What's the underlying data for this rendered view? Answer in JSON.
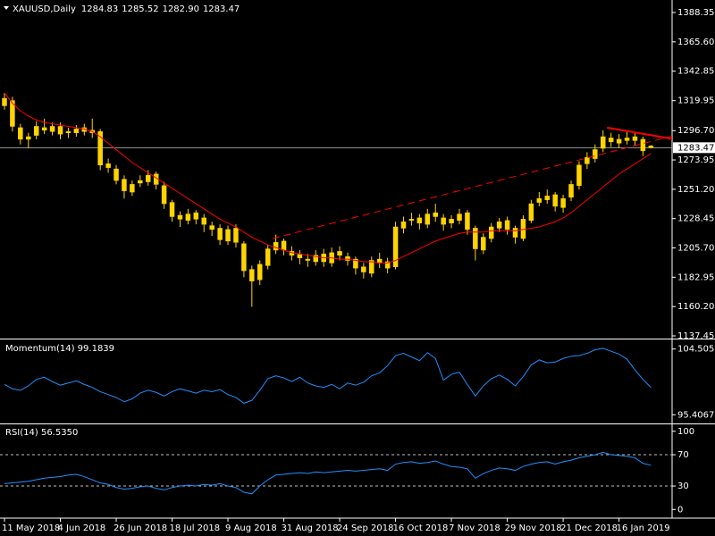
{
  "chart_data": [
    {
      "type": "candlestick",
      "title": "XAUUSD,Daily",
      "header_ohlc": [
        "1284.83",
        "1285.52",
        "1282.90",
        "1283.47"
      ],
      "categories": [
        "11 May 2018",
        null,
        null,
        null,
        null,
        null,
        null,
        "4 Jun 2018",
        null,
        null,
        null,
        null,
        null,
        null,
        "26 Jun 2018",
        null,
        null,
        null,
        null,
        null,
        null,
        "18 Jul 2018",
        null,
        null,
        null,
        null,
        null,
        null,
        "9 Aug 2018",
        null,
        null,
        null,
        null,
        null,
        null,
        "31 Aug 2018",
        null,
        null,
        null,
        null,
        null,
        null,
        "24 Sep 2018",
        null,
        null,
        null,
        null,
        null,
        null,
        "16 Oct 2018",
        null,
        null,
        null,
        null,
        null,
        null,
        "7 Nov 2018",
        null,
        null,
        null,
        null,
        null,
        null,
        "29 Nov 2018",
        null,
        null,
        null,
        null,
        null,
        null,
        "21 Dec 2018",
        null,
        null,
        null,
        null,
        null,
        null,
        "16 Jan 2019",
        null,
        null,
        null,
        null
      ],
      "open": [
        1316,
        1320,
        1299,
        1290,
        1293,
        1299,
        1296,
        1300,
        1295,
        1295,
        1299,
        1295,
        1296,
        1271,
        1267,
        1259,
        1249,
        1256,
        1257,
        1263,
        1254,
        1241,
        1231,
        1227,
        1233,
        1229,
        1223,
        1221,
        1211,
        1221,
        1209,
        1189,
        1181,
        1192,
        1204,
        1211,
        1203,
        1201,
        1197,
        1195,
        1201,
        1194,
        1203,
        1199,
        1197,
        1191,
        1186,
        1197,
        1195,
        1191,
        1221,
        1227,
        1229,
        1224,
        1233,
        1229,
        1225,
        1227,
        1233,
        1221,
        1204,
        1213,
        1221,
        1227,
        1221,
        1213,
        1227,
        1241,
        1243,
        1247,
        1237,
        1245,
        1254,
        1271,
        1275,
        1283,
        1291,
        1287,
        1289,
        1292,
        1290,
        1284.83
      ],
      "high": [
        1326,
        1323,
        1302,
        1295,
        1304,
        1306,
        1303,
        1303,
        1299,
        1301,
        1302,
        1306,
        1298,
        1275,
        1270,
        1262,
        1258,
        1262,
        1266,
        1265,
        1257,
        1243,
        1234,
        1236,
        1235,
        1232,
        1226,
        1224,
        1223,
        1224,
        1211,
        1192,
        1196,
        1208,
        1216,
        1213,
        1207,
        1204,
        1201,
        1204,
        1205,
        1206,
        1207,
        1202,
        1199,
        1194,
        1199,
        1202,
        1198,
        1226,
        1230,
        1233,
        1232,
        1236,
        1240,
        1232,
        1231,
        1236,
        1235,
        1223,
        1217,
        1225,
        1229,
        1230,
        1223,
        1231,
        1243,
        1249,
        1251,
        1249,
        1247,
        1258,
        1273,
        1280,
        1286,
        1297,
        1295,
        1294,
        1296,
        1295,
        1292,
        1285.52
      ],
      "low": [
        1313,
        1296,
        1286,
        1283,
        1290,
        1294,
        1293,
        1290,
        1291,
        1292,
        1293,
        1291,
        1266,
        1264,
        1255,
        1244,
        1246,
        1253,
        1254,
        1251,
        1236,
        1226,
        1222,
        1224,
        1224,
        1218,
        1215,
        1208,
        1208,
        1206,
        1183,
        1160,
        1177,
        1189,
        1201,
        1200,
        1196,
        1193,
        1191,
        1192,
        1191,
        1191,
        1196,
        1192,
        1185,
        1182,
        1183,
        1190,
        1186,
        1189,
        1217,
        1223,
        1220,
        1221,
        1226,
        1219,
        1221,
        1224,
        1216,
        1196,
        1201,
        1210,
        1218,
        1216,
        1209,
        1211,
        1225,
        1238,
        1240,
        1234,
        1233,
        1242,
        1251,
        1267,
        1272,
        1280,
        1284,
        1283,
        1286,
        1285,
        1277,
        1282.9
      ],
      "close": [
        1321.8,
        1300,
        1290,
        1292,
        1300,
        1297,
        1300,
        1294,
        1296,
        1298,
        1296,
        1297,
        1270,
        1268,
        1258,
        1250,
        1255,
        1258,
        1262,
        1255,
        1240,
        1230,
        1228,
        1232,
        1228,
        1224,
        1220,
        1212,
        1220,
        1210,
        1188,
        1180,
        1193,
        1205,
        1210,
        1204,
        1200,
        1198,
        1196,
        1200,
        1195,
        1202,
        1200,
        1196,
        1190,
        1187,
        1196,
        1194,
        1190,
        1222,
        1226,
        1228,
        1225,
        1232,
        1230,
        1224,
        1228,
        1232,
        1220,
        1205,
        1214,
        1222,
        1226,
        1220,
        1214,
        1228,
        1240,
        1244,
        1246,
        1238,
        1244,
        1255,
        1270,
        1276,
        1282,
        1292,
        1288,
        1290,
        1291,
        1289,
        1281,
        1283.47
      ],
      "color": "#ffd400",
      "series": [
        {
          "color": "#ff0000",
          "values": [
            1326,
            1318,
            1312,
            1308,
            1305,
            1303,
            1302,
            1301,
            1300,
            1299,
            1298,
            1296,
            1292,
            1287,
            1282,
            1277,
            1272,
            1268,
            1264,
            1260,
            1256,
            1252,
            1248,
            1244,
            1240,
            1236,
            1232,
            1228,
            1225,
            1222,
            1218,
            1214,
            1211,
            1208,
            1206,
            1204,
            1202,
            1201,
            1200,
            1199,
            1198,
            1198,
            1197,
            1197,
            1196,
            1195,
            1195,
            1194,
            1194,
            1196,
            1199,
            1202,
            1205,
            1208,
            1211,
            1213,
            1215,
            1217,
            1218,
            1218,
            1218,
            1219,
            1219,
            1219,
            1219,
            1220,
            1221,
            1222,
            1224,
            1226,
            1229,
            1233,
            1238,
            1243,
            1248,
            1253,
            1258,
            1263,
            1267,
            1271,
            1275,
            1279
          ]
        }
      ],
      "trendlines": [
        {
          "x": [
            33.6,
            84
          ],
          "y": [
            1213,
            1293
          ],
          "color": "#ff0000",
          "dashed": true
        },
        {
          "x": [
            75.5,
            84
          ],
          "y": [
            1299,
            1290
          ],
          "color": "#ff0000",
          "dashed": false
        }
      ],
      "last_price": 1283.47,
      "ylim": [
        1136.06,
        1396.67
      ],
      "yticks": [
        1388.35,
        {
          "value": 1365.6,
          "label": "1365.60"
        },
        1342.85,
        1319.95,
        {
          "value": 1296.7,
          "label": "1296.70"
        },
        1273.95,
        {
          "value": 1251.2,
          "label": "1251.20"
        },
        1228.45,
        {
          "value": 1205.7,
          "label": "1205.70"
        },
        1182.95,
        {
          "value": 1160.2,
          "label": "1160.20"
        },
        1137.45
      ]
    },
    {
      "type": "line",
      "title": "Momentum(14) 99.1839",
      "series": [
        {
          "color": "#1e90ff",
          "values": [
            99.6,
            99.0,
            98.8,
            99.4,
            100.3,
            100.6,
            100.0,
            99.5,
            99.8,
            100.1,
            99.6,
            99.2,
            98.6,
            98.2,
            97.8,
            97.2,
            97.6,
            98.4,
            98.8,
            98.5,
            98.0,
            98.6,
            99.0,
            98.7,
            98.4,
            98.8,
            98.6,
            98.9,
            98.2,
            97.8,
            97.0,
            97.4,
            98.8,
            100.4,
            100.8,
            100.5,
            100.0,
            100.6,
            99.8,
            99.4,
            99.2,
            99.6,
            99.0,
            99.8,
            99.5,
            99.9,
            100.8,
            101.2,
            102.2,
            103.6,
            103.9,
            103.4,
            102.9,
            104.0,
            103.2,
            100.2,
            101.0,
            101.3,
            99.6,
            98.0,
            99.4,
            100.4,
            100.9,
            100.3,
            99.4,
            100.7,
            102.3,
            103.0,
            102.6,
            102.7,
            103.2,
            103.5,
            103.6,
            103.9,
            104.4,
            104.6,
            104.2,
            103.8,
            103.1,
            101.6,
            100.3,
            99.1839
          ]
        }
      ],
      "ylim": [
        94.45,
        105.58
      ],
      "yticks": [
        104.5057,
        95.4067
      ]
    },
    {
      "type": "line",
      "title": "RSI(14) 56.5350",
      "series": [
        {
          "color": "#1e90ff",
          "values": [
            33,
            34,
            35,
            36,
            38,
            40,
            41,
            42,
            44,
            45,
            42,
            38,
            34,
            32,
            28,
            26,
            27,
            29,
            30,
            27,
            25,
            28,
            30,
            31,
            30,
            32,
            31,
            33,
            30,
            28,
            22,
            20,
            30,
            38,
            44,
            45,
            46,
            47,
            46,
            48,
            47,
            48,
            49,
            50,
            49,
            50,
            51,
            52,
            50,
            58,
            60,
            61,
            59,
            60,
            62,
            58,
            55,
            54,
            52,
            40,
            46,
            50,
            53,
            52,
            50,
            55,
            58,
            60,
            61,
            58,
            61,
            63,
            66,
            68,
            70,
            73,
            70,
            69,
            68,
            66,
            59,
            56.535
          ]
        }
      ],
      "levels": [
        70,
        30
      ],
      "ylim": [
        -8.8,
        106.6
      ],
      "yticks": [
        100,
        70,
        30,
        0
      ]
    }
  ]
}
